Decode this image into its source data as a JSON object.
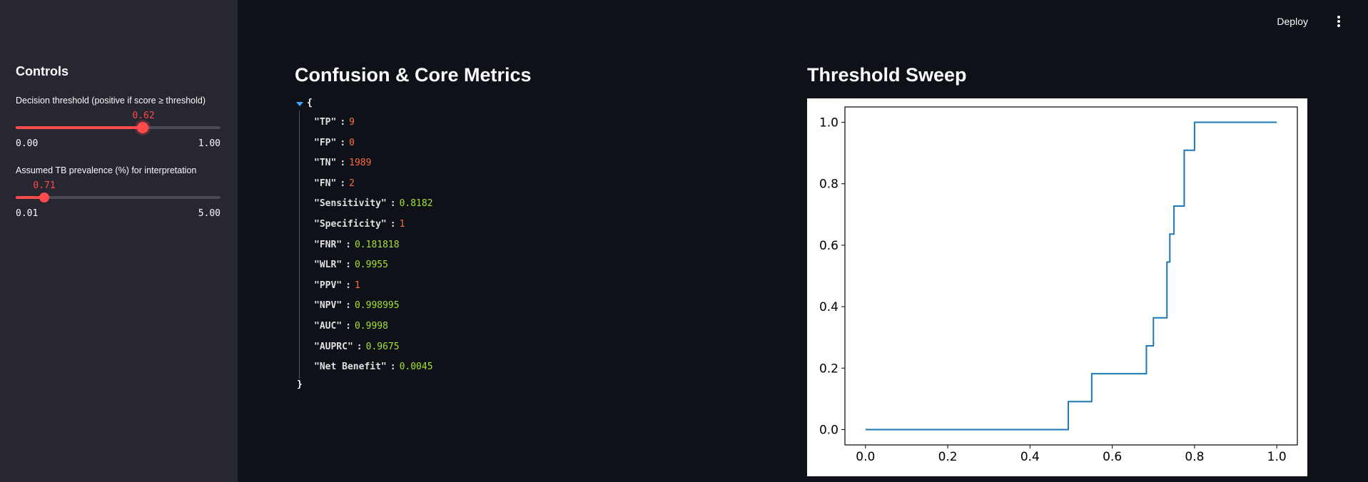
{
  "sidebar": {
    "title": "Controls",
    "threshold_slider": {
      "label": "Decision threshold (positive if score ≥ threshold)",
      "value": "0.62",
      "value_fraction": 0.62,
      "min": "0.00",
      "max": "1.00"
    },
    "prevalence_slider": {
      "label": "Assumed TB prevalence (%) for interpretation",
      "value": "0.71",
      "value_fraction": 0.1403,
      "min": "0.01",
      "max": "5.00"
    }
  },
  "topbar": {
    "deploy_label": "Deploy",
    "menu_icon": "kebab-vertical-icon"
  },
  "metrics": {
    "title": "Confusion & Core Metrics",
    "open_brace": "{",
    "close_brace": "}",
    "rows": [
      {
        "key": "\"TP\"",
        "value": "9",
        "kind": "int"
      },
      {
        "key": "\"FP\"",
        "value": "0",
        "kind": "int"
      },
      {
        "key": "\"TN\"",
        "value": "1989",
        "kind": "int"
      },
      {
        "key": "\"FN\"",
        "value": "2",
        "kind": "int"
      },
      {
        "key": "\"Sensitivity\"",
        "value": "0.8182",
        "kind": "float"
      },
      {
        "key": "\"Specificity\"",
        "value": "1",
        "kind": "int"
      },
      {
        "key": "\"FNR\"",
        "value": "0.181818",
        "kind": "float"
      },
      {
        "key": "\"WLR\"",
        "value": "0.9955",
        "kind": "float"
      },
      {
        "key": "\"PPV\"",
        "value": "1",
        "kind": "int"
      },
      {
        "key": "\"NPV\"",
        "value": "0.998995",
        "kind": "float"
      },
      {
        "key": "\"AUC\"",
        "value": "0.9998",
        "kind": "float"
      },
      {
        "key": "\"AUPRC\"",
        "value": "0.9675",
        "kind": "float"
      },
      {
        "key": "\"Net Benefit\"",
        "value": "0.0045",
        "kind": "float"
      }
    ]
  },
  "sweep": {
    "title": "Threshold Sweep"
  },
  "colors": {
    "accent": "#ff4b4b",
    "line": "#1f77b4",
    "int_value": "#ff6b3d",
    "float_value": "#a6e22e"
  },
  "chart_data": {
    "type": "line",
    "title": "",
    "xlabel": "",
    "ylabel": "",
    "xlim": [
      -0.05,
      1.05
    ],
    "ylim": [
      -0.05,
      1.05
    ],
    "xticks": [
      "0.0",
      "0.2",
      "0.4",
      "0.6",
      "0.8",
      "1.0"
    ],
    "yticks": [
      "0.0",
      "0.2",
      "0.4",
      "0.6",
      "0.8",
      "1.0"
    ],
    "series": [
      {
        "x": [
          0.0,
          0.493,
          0.493,
          0.55,
          0.55,
          0.683,
          0.683,
          0.7,
          0.7,
          0.733,
          0.733,
          0.74,
          0.74,
          0.745,
          0.745,
          0.75,
          0.75,
          0.775,
          0.775,
          0.8,
          0.8,
          1.0
        ],
        "y": [
          0.0,
          0.0,
          0.0909,
          0.0909,
          0.1818,
          0.1818,
          0.2727,
          0.2727,
          0.3636,
          0.3636,
          0.5454,
          0.5454,
          0.6364,
          0.6364,
          0.6364,
          0.6364,
          0.7273,
          0.7273,
          0.9091,
          0.9091,
          1.0,
          1.0
        ]
      }
    ],
    "grid": false,
    "legend": "none"
  }
}
